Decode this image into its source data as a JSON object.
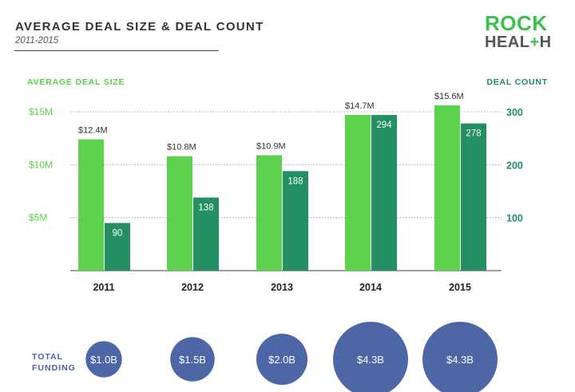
{
  "header": {
    "title": "AVERAGE DEAL SIZE & DEAL COUNT",
    "subtitle": "2011-2015"
  },
  "logo": {
    "line1": "ROCK",
    "line2_a": "HEAL",
    "line2_plus": "+",
    "line2_b": "H"
  },
  "axes": {
    "left_title": "AVERAGE DEAL SIZE",
    "right_title": "DEAL COUNT",
    "left_ticks": [
      "$15M",
      "$10M",
      "$5M"
    ],
    "right_ticks": [
      "300",
      "200",
      "100"
    ]
  },
  "funding": {
    "label_line1": "TOTAL",
    "label_line2": "FUNDING"
  },
  "colors": {
    "avg_bar": "#5dd14e",
    "count_bar": "#238f63",
    "bubble": "#4c66a6",
    "grid": "#9a9a9a"
  },
  "chart_data": {
    "type": "bar",
    "categories": [
      "2011",
      "2012",
      "2013",
      "2014",
      "2015"
    ],
    "series": [
      {
        "axis": "left",
        "unit": "$M",
        "values": [
          12.4,
          10.8,
          10.9,
          14.7,
          15.6
        ],
        "labels": [
          "$12.4M",
          "$10.8M",
          "$10.9M",
          "$14.7M",
          "$15.6M"
        ]
      },
      {
        "axis": "right",
        "values": [
          90,
          138,
          188,
          294,
          278
        ],
        "labels": [
          "90",
          "138",
          "188",
          "294",
          "278"
        ]
      }
    ],
    "total_funding": {
      "values_billion": [
        1.0,
        1.5,
        2.0,
        4.3,
        4.3
      ],
      "labels": [
        "$1.0B",
        "$1.5B",
        "$2.0B",
        "$4.3B",
        "$4.3B"
      ]
    },
    "left_ylim": [
      0,
      15
    ],
    "right_ylim": [
      0,
      300
    ],
    "grid": true
  }
}
